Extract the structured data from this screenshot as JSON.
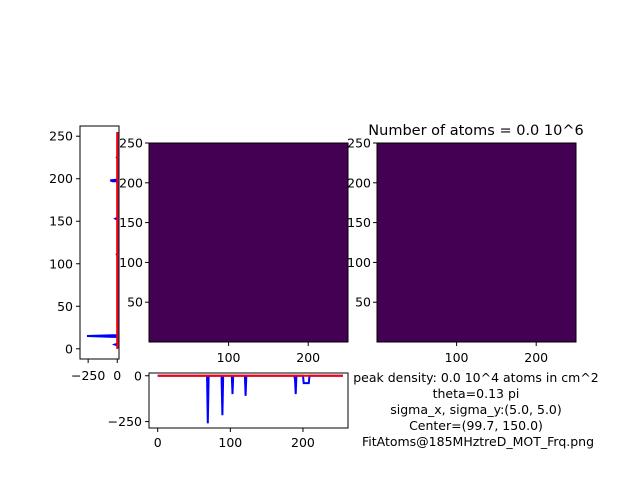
{
  "figure": {
    "title": "Number of atoms = 0.0 10^6",
    "info_lines": [
      "peak density: 0.0 10^4 atoms in cm^2",
      "theta=0.13 pi",
      "sigma_x, sigma_y:(5.0, 5.0)",
      "Center=(99.7, 150.0)",
      "FitAtoms@185MHztreD_MOT_Frq.png"
    ],
    "colors": {
      "image_fill": "#440154",
      "profile_data": "#0000ff",
      "profile_fit": "#ff0000"
    }
  },
  "chart_data": [
    {
      "id": "vertical_profile",
      "type": "line",
      "orientation": "vertical",
      "xlim": [
        -320,
        15
      ],
      "ylim": [
        -12,
        262
      ],
      "xticks": [
        -250,
        0
      ],
      "yticks": [
        0,
        50,
        100,
        150,
        200,
        250
      ],
      "series": [
        {
          "color": "blue",
          "points": [
            [
              0,
              0
            ],
            [
              0,
              4
            ],
            [
              -20,
              5
            ],
            [
              0,
              6
            ],
            [
              0,
              14
            ],
            [
              -40,
              14
            ],
            [
              -260,
              15
            ],
            [
              -40,
              16
            ],
            [
              0,
              16
            ],
            [
              0,
              110
            ],
            [
              -5,
              111
            ],
            [
              0,
              112
            ],
            [
              0,
              152
            ],
            [
              -15,
              153
            ],
            [
              0,
              154
            ],
            [
              0,
              196
            ],
            [
              -10,
              197
            ],
            [
              -40,
              197
            ],
            [
              -60,
              198
            ],
            [
              0,
              199
            ],
            [
              0,
              224
            ],
            [
              -5,
              225
            ],
            [
              0,
              226
            ],
            [
              0,
              255
            ]
          ]
        },
        {
          "color": "red",
          "points": [
            [
              0,
              0
            ],
            [
              0,
              255
            ]
          ]
        }
      ]
    },
    {
      "id": "image_raw",
      "type": "heatmap",
      "xlim": [
        0,
        250
      ],
      "ylim": [
        0,
        250
      ],
      "xticks": [
        100,
        200
      ],
      "yticks": [
        50,
        100,
        150,
        200,
        250
      ],
      "fill_value": 0
    },
    {
      "id": "image_fit",
      "type": "heatmap",
      "xlim": [
        0,
        250
      ],
      "ylim": [
        0,
        250
      ],
      "xticks": [
        100,
        200
      ],
      "yticks": [
        50,
        100,
        150,
        200,
        250
      ],
      "fill_value": 0
    },
    {
      "id": "horizontal_profile",
      "type": "line",
      "xlim": [
        -12,
        262
      ],
      "ylim": [
        -285,
        15
      ],
      "xticks": [
        0,
        100,
        200
      ],
      "yticks": [
        -250,
        0
      ],
      "series": [
        {
          "color": "blue",
          "points": [
            [
              0,
              0
            ],
            [
              68,
              0
            ],
            [
              68,
              -15
            ],
            [
              69,
              -260
            ],
            [
              70,
              -15
            ],
            [
              70,
              0
            ],
            [
              88,
              0
            ],
            [
              88,
              -20
            ],
            [
              89,
              -215
            ],
            [
              90,
              -20
            ],
            [
              90,
              0
            ],
            [
              102,
              0
            ],
            [
              103,
              -100
            ],
            [
              104,
              0
            ],
            [
              120,
              0
            ],
            [
              121,
              -110
            ],
            [
              122,
              0
            ],
            [
              188,
              0
            ],
            [
              189,
              -20
            ],
            [
              190,
              -100
            ],
            [
              191,
              0
            ],
            [
              200,
              0
            ],
            [
              201,
              -40
            ],
            [
              208,
              -40
            ],
            [
              209,
              0
            ],
            [
              255,
              0
            ]
          ]
        },
        {
          "color": "red",
          "points": [
            [
              0,
              0
            ],
            [
              255,
              0
            ]
          ]
        }
      ]
    }
  ]
}
